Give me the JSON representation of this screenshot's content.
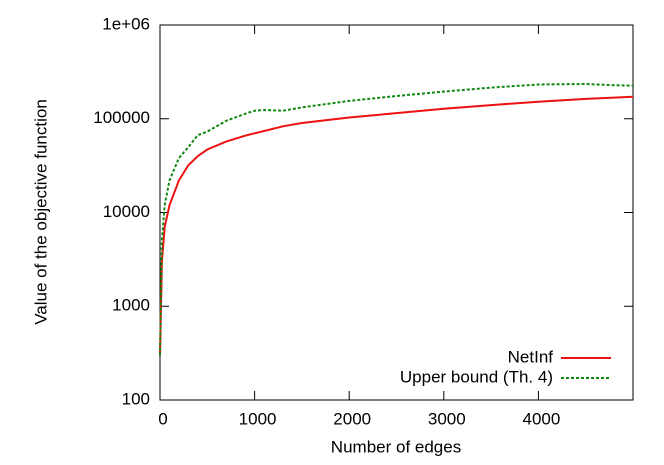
{
  "chart_data": {
    "type": "line",
    "xlabel": "Number of edges",
    "ylabel": "Value of the objective function",
    "x": [
      0,
      20,
      50,
      100,
      200,
      300,
      400,
      500,
      700,
      900,
      1000,
      1100,
      1300,
      1500,
      2000,
      2500,
      3000,
      3500,
      4000,
      4500,
      4800,
      5000
    ],
    "series": [
      {
        "name": "NetInf",
        "color": "#ee1111",
        "dash": false,
        "values": [
          300,
          3000,
          7000,
          12000,
          22000,
          32000,
          40000,
          47000,
          57000,
          66000,
          70000,
          74000,
          83000,
          90000,
          103000,
          115000,
          128000,
          140000,
          152000,
          163000,
          168000,
          172000
        ]
      },
      {
        "name": "Upper bound (Th. 4)",
        "color": "#118811",
        "dash": true,
        "values": [
          300,
          5000,
          12000,
          22000,
          38000,
          50000,
          67000,
          73000,
          95000,
          113000,
          122000,
          124000,
          122000,
          132000,
          155000,
          175000,
          195000,
          215000,
          232000,
          235000,
          228000,
          225000
        ]
      }
    ],
    "xlim": [
      0,
      5000
    ],
    "xticks": [
      0,
      1000,
      2000,
      3000,
      4000
    ],
    "ylim": [
      100,
      1000000
    ],
    "yticks": [
      100,
      1000,
      10000,
      100000,
      {
        "value": 1000000,
        "label": "1e+06"
      }
    ],
    "log_y": true,
    "grid": false,
    "legend": "bottom right"
  }
}
